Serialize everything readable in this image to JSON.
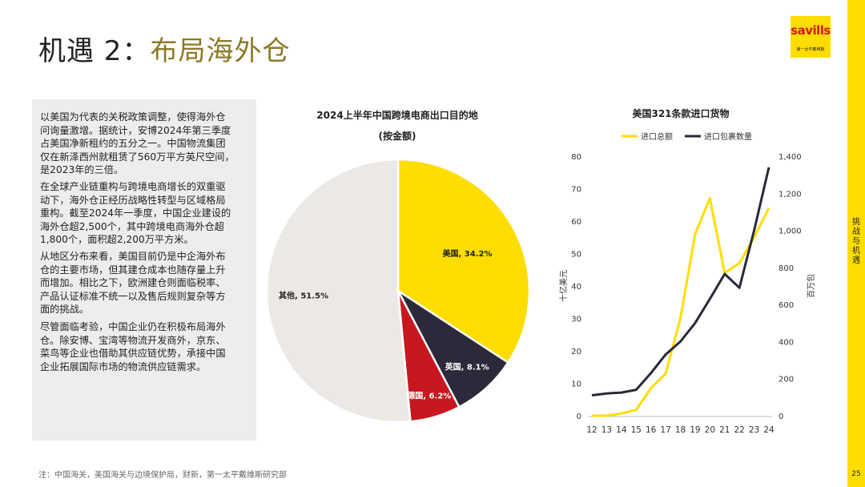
{
  "header": {
    "title_prefix": "机遇 2：",
    "title_main": "布局海外仓"
  },
  "logo": {
    "name": "savills",
    "sub": "第一太平戴维斯"
  },
  "sidebar": {
    "section": "挑战与机遇",
    "page_number": "25"
  },
  "body_paragraphs": [
    [
      "以美国为代表的关税政策调整，使得海外仓",
      "问询量激增。据统计，安博2024年第三季度",
      "占美国净新租约的五分之一。中国物流集团",
      "仅在新泽西州就租赁了560万平方英尺空间，",
      "是2023年的三倍。"
    ],
    [
      "在全球产业链重构与跨境电商增长的双重驱",
      "动下，海外仓正经历战略性转型与区域格局",
      "重构。截至2024年一季度，中国企业建设的",
      "海外仓超2,500个，其中跨境电商海外仓超",
      "1,800个，面积超2,200万平方米。"
    ],
    [
      "从地区分布来看，美国目前仍是中企海外布",
      "仓的主要市场，但其建仓成本也随存量上升",
      "而增加。相比之下，欧洲建仓则面临税率、",
      "产品认证标准不统一以及售后规则复杂等方",
      "面的挑战。"
    ],
    [
      "尽管面临考验，中国企业仍在积极布局海外",
      "仓。除安博、宝湾等物流开发商外，京东、",
      "菜鸟等企业也借助其供应链优势，承接中国",
      "企业拓展国际市场的物流供应链需求。"
    ]
  ],
  "footer": {
    "source": "注：中国海关，美国海关与边境保护局，财新，第一太平戴维斯研究部"
  },
  "colors": {
    "accent": "#ffdd00",
    "dark": "#2a2a3a",
    "red": "#c8171e",
    "grey": "#ece9e5",
    "title_gold": "#8a7a2a"
  },
  "chart_data": [
    {
      "type": "pie",
      "title": "2024上半年中国跨境电商出口目的地",
      "subtitle": "(按金额)",
      "slices": [
        {
          "name": "美国",
          "value": 34.2,
          "label": "美国, 34.2%",
          "color": "#ffdd00"
        },
        {
          "name": "英国",
          "value": 8.1,
          "label": "英国, 8.1%",
          "color": "#2a2a3a"
        },
        {
          "name": "德国",
          "value": 6.2,
          "label": "德国, 6.2%",
          "color": "#c8171e"
        },
        {
          "name": "其他",
          "value": 51.5,
          "label": "其他, 51.5%",
          "color": "#ece9e5"
        }
      ]
    },
    {
      "type": "line",
      "title": "美国321条款进口货物",
      "x": [
        12,
        13,
        14,
        15,
        16,
        17,
        18,
        19,
        20,
        21,
        22,
        23,
        24
      ],
      "ylabel": "十亿美元",
      "y2label": "百万包",
      "ylim": [
        0,
        80
      ],
      "y2lim": [
        0,
        1400
      ],
      "yticks": [
        0,
        10,
        20,
        30,
        40,
        50,
        60,
        70,
        80
      ],
      "y2ticks": [
        "0",
        "200",
        "400",
        "600",
        "800",
        "1,000",
        "1,200",
        "1,400"
      ],
      "series": [
        {
          "name": "进口总额",
          "axis": "left",
          "color": "#ffdd00",
          "values": [
            0,
            0,
            0.7,
            1.8,
            8.5,
            13,
            30,
            56,
            67,
            44,
            47,
            55,
            64
          ]
        },
        {
          "name": "进口包裹数量",
          "axis": "right",
          "color": "#2a2a3a",
          "values": [
            110,
            120,
            125,
            140,
            230,
            330,
            400,
            500,
            630,
            765,
            690,
            1000,
            1340
          ]
        }
      ]
    }
  ]
}
